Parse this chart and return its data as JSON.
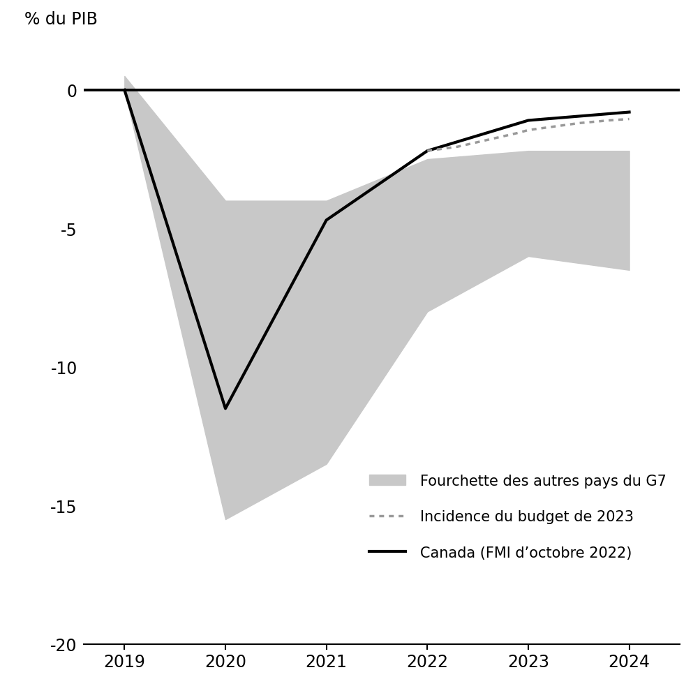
{
  "years": [
    2019,
    2020,
    2021,
    2022,
    2023,
    2024
  ],
  "canada_line": [
    0.0,
    -11.5,
    -4.7,
    -2.2,
    -1.1,
    -0.8
  ],
  "g7_upper": [
    0.5,
    -4.0,
    -4.0,
    -2.5,
    -2.2,
    -2.2
  ],
  "g7_lower": [
    0.0,
    -15.5,
    -13.5,
    -8.0,
    -6.0,
    -6.5
  ],
  "budget_x": [
    2022.0,
    2022.3,
    2022.6,
    2022.9,
    2023.0,
    2023.2,
    2023.5,
    2023.8,
    2024.0
  ],
  "budget_y": [
    -2.2,
    -2.05,
    -1.8,
    -1.55,
    -1.45,
    -1.35,
    -1.2,
    -1.1,
    -1.05
  ],
  "ylim": [
    -20,
    1.5
  ],
  "yticks": [
    0,
    -5,
    -10,
    -15,
    -20
  ],
  "xlim": [
    2018.6,
    2024.5
  ],
  "xticks": [
    2019,
    2020,
    2021,
    2022,
    2023,
    2024
  ],
  "ylabel": "% du PIB",
  "band_color": "#c8c8c8",
  "canada_color": "#000000",
  "budget_color": "#999999",
  "zero_line_color": "#000000",
  "legend_labels": [
    "Fourchette des autres pays du G7",
    "Incidence du budget de 2023",
    "Canada (FMI d’octobre 2022)"
  ],
  "background_color": "#ffffff",
  "font_size": 17,
  "tick_font_size": 17,
  "legend_font_size": 15
}
